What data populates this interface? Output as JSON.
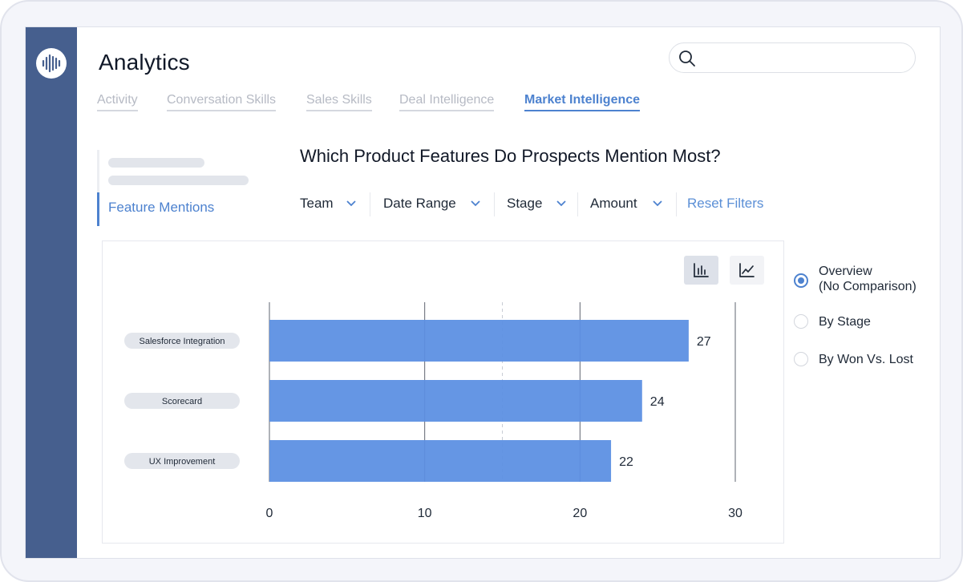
{
  "app": {
    "title": "Analytics"
  },
  "search": {
    "placeholder": ""
  },
  "tabs": [
    {
      "label": "Activity",
      "active": false
    },
    {
      "label": "Conversation Skills",
      "active": false
    },
    {
      "label": "Sales Skills",
      "active": false
    },
    {
      "label": "Deal Intelligence",
      "active": false
    },
    {
      "label": "Market Intelligence",
      "active": true
    }
  ],
  "subnav": {
    "active_item": "Feature Mentions"
  },
  "report": {
    "title": "Which Product Features Do Prospects Mention Most?",
    "filters": [
      "Team",
      "Date Range",
      "Stage",
      "Amount"
    ],
    "reset_label": "Reset Filters"
  },
  "view_toggle": {
    "selected": "bar-chart-icon",
    "options": [
      "bar-chart-icon",
      "line-chart-icon"
    ]
  },
  "options": [
    {
      "line1": "Overview",
      "line2": "(No Comparison)",
      "checked": true
    },
    {
      "line1": "By Stage",
      "line2": "",
      "checked": false
    },
    {
      "line1": "By Won Vs. Lost",
      "line2": "",
      "checked": false
    }
  ],
  "colors": {
    "rail": "#465f8e",
    "accent": "#4d82cf",
    "bar": "#5b8fe2"
  },
  "chart_data": {
    "type": "bar",
    "orientation": "horizontal",
    "title": "Which Product Features Do Prospects Mention Most?",
    "categories": [
      "Salesforce Integration",
      "Scorecard",
      "UX Improvement"
    ],
    "values": [
      27,
      24,
      22
    ],
    "xlim": [
      0,
      30
    ],
    "xticks": [
      0,
      10,
      20,
      30
    ],
    "grid": true,
    "data_labels": true
  }
}
